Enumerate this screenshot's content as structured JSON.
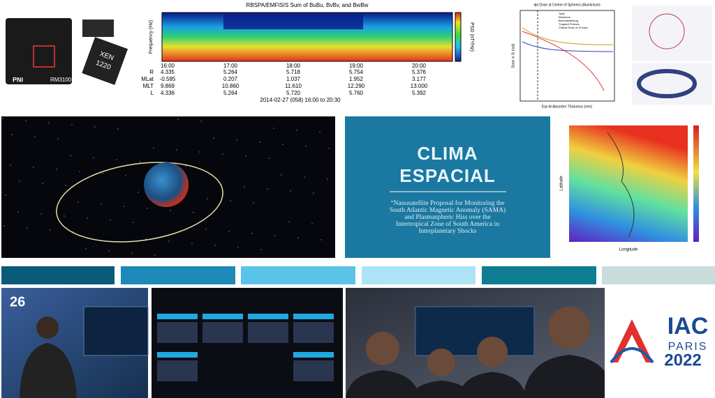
{
  "spectrogram": {
    "title": "RBSPA/EMFISIS  Sum of BuBu, BvBv, and BwBw",
    "y_label": "Frequency (Hz)",
    "colorbar_label": "PSD (nT²/Hz)",
    "times": [
      "16:00",
      "17:00",
      "18:00",
      "19:00",
      "20:00"
    ],
    "rows": [
      {
        "label": "R",
        "values": [
          "4.335",
          "5.264",
          "5.718",
          "5.754",
          "5.376"
        ]
      },
      {
        "label": "MLat",
        "values": [
          "-0.585",
          "0.207",
          "1.037",
          "1.952",
          "3.177"
        ]
      },
      {
        "label": "MLT",
        "values": [
          "9.869",
          "10.860",
          "11.610",
          "12.290",
          "13.000"
        ]
      },
      {
        "label": "L",
        "values": [
          "4.336",
          "5.264",
          "5.720",
          "5.760",
          "5.392"
        ]
      }
    ],
    "date": "2014-02-27 (058) 16:00 to 20:30"
  },
  "dose_chart": {
    "title": "4pi Dose at Centre of Spheres (Aluminium)",
    "legend": [
      "Total",
      "Electrons",
      "Bremsstrahlung",
      "Trapped Protons",
      "Critical Dose of 10 krad"
    ],
    "x_label": "Eqv Al Absorber Thickness (mm)",
    "y_label": "Dose in Si (rad)"
  },
  "chip": {
    "brand": "PNI",
    "model": "RM3100",
    "package": [
      "XEN",
      "1220"
    ]
  },
  "panel": {
    "title": [
      "CLIMA",
      "ESPACIAL"
    ],
    "subtitle_lines": [
      "“Nanosatellite Proposal for Monitoring the",
      "South Atlantic Magnetic Anomaly (SAMA)",
      "and Plasmaspheric Hiss over the",
      "Intertropical Zone of South America in",
      "Interplanetary Shocks"
    ]
  },
  "map": {
    "y_label": "Latitude",
    "x_label": "Longitude"
  },
  "photo": {
    "booth_number": "26"
  },
  "logo": {
    "org": "IAC",
    "city": "PARIS",
    "year": "2022"
  }
}
